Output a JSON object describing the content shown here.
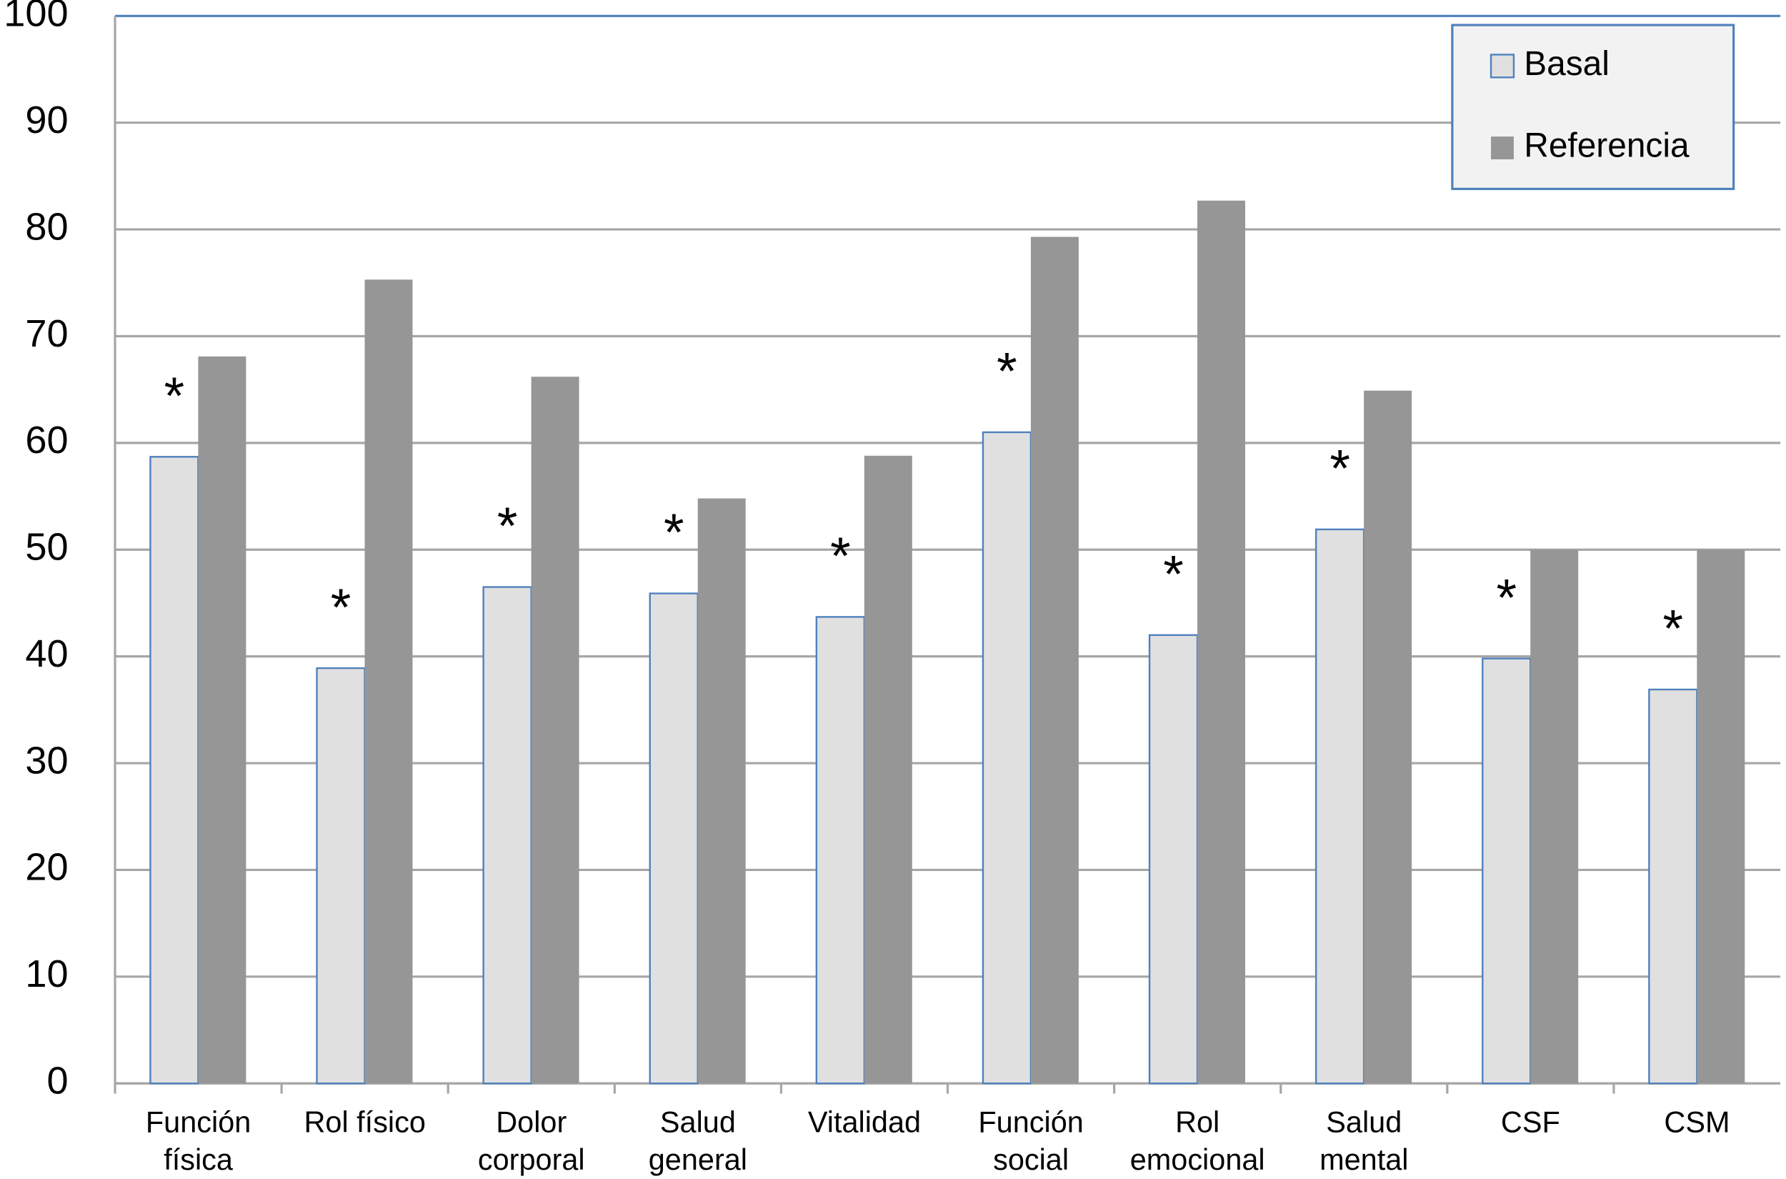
{
  "chart_data": {
    "type": "bar",
    "categories": [
      [
        "Función",
        "física"
      ],
      [
        "Rol físico"
      ],
      [
        "Dolor",
        "corporal"
      ],
      [
        "Salud",
        "general"
      ],
      [
        "Vitalidad"
      ],
      [
        "Función",
        "social"
      ],
      [
        "Rol",
        "emocional"
      ],
      [
        "Salud",
        "mental"
      ],
      [
        "CSF"
      ],
      [
        "CSM"
      ]
    ],
    "series": [
      {
        "name": "Basal",
        "color": "#e0e0e0",
        "values": [
          58.7,
          38.9,
          46.5,
          45.9,
          43.7,
          61,
          42,
          51.9,
          39.8,
          36.9
        ]
      },
      {
        "name": "Referencia",
        "color": "#969696",
        "values": [
          68.1,
          75.3,
          66.2,
          54.8,
          58.8,
          79.3,
          82.7,
          64.9,
          50,
          50
        ]
      }
    ],
    "annotations": [
      "*",
      "*",
      "*",
      "*",
      "*",
      "*",
      "*",
      "*",
      "*",
      "*"
    ],
    "ylim": [
      0,
      100
    ],
    "yticks": [
      0,
      10,
      20,
      30,
      40,
      50,
      60,
      70,
      80,
      90,
      100
    ],
    "grid": true,
    "legend": "top-right"
  }
}
